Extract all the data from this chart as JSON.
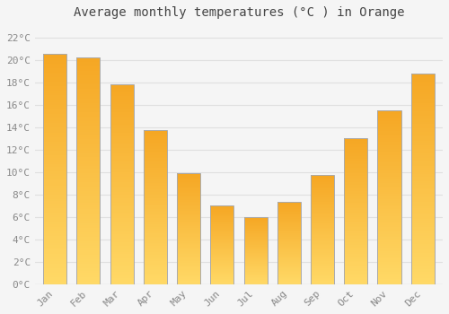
{
  "title": "Average monthly temperatures (°C ) in Orange",
  "months": [
    "Jan",
    "Feb",
    "Mar",
    "Apr",
    "May",
    "Jun",
    "Jul",
    "Aug",
    "Sep",
    "Oct",
    "Nov",
    "Dec"
  ],
  "values": [
    20.5,
    20.2,
    17.8,
    13.7,
    9.9,
    7.0,
    6.0,
    7.3,
    9.7,
    13.0,
    15.5,
    18.8
  ],
  "bar_color_top": "#F5A623",
  "bar_color_bottom": "#FFD966",
  "bar_edge_color": "#AAAAAA",
  "background_color": "#F5F5F5",
  "grid_color": "#E0E0E0",
  "title_fontsize": 10,
  "tick_fontsize": 8,
  "ytick_step": 2,
  "ymin": 0,
  "ymax": 23,
  "font_family": "monospace"
}
